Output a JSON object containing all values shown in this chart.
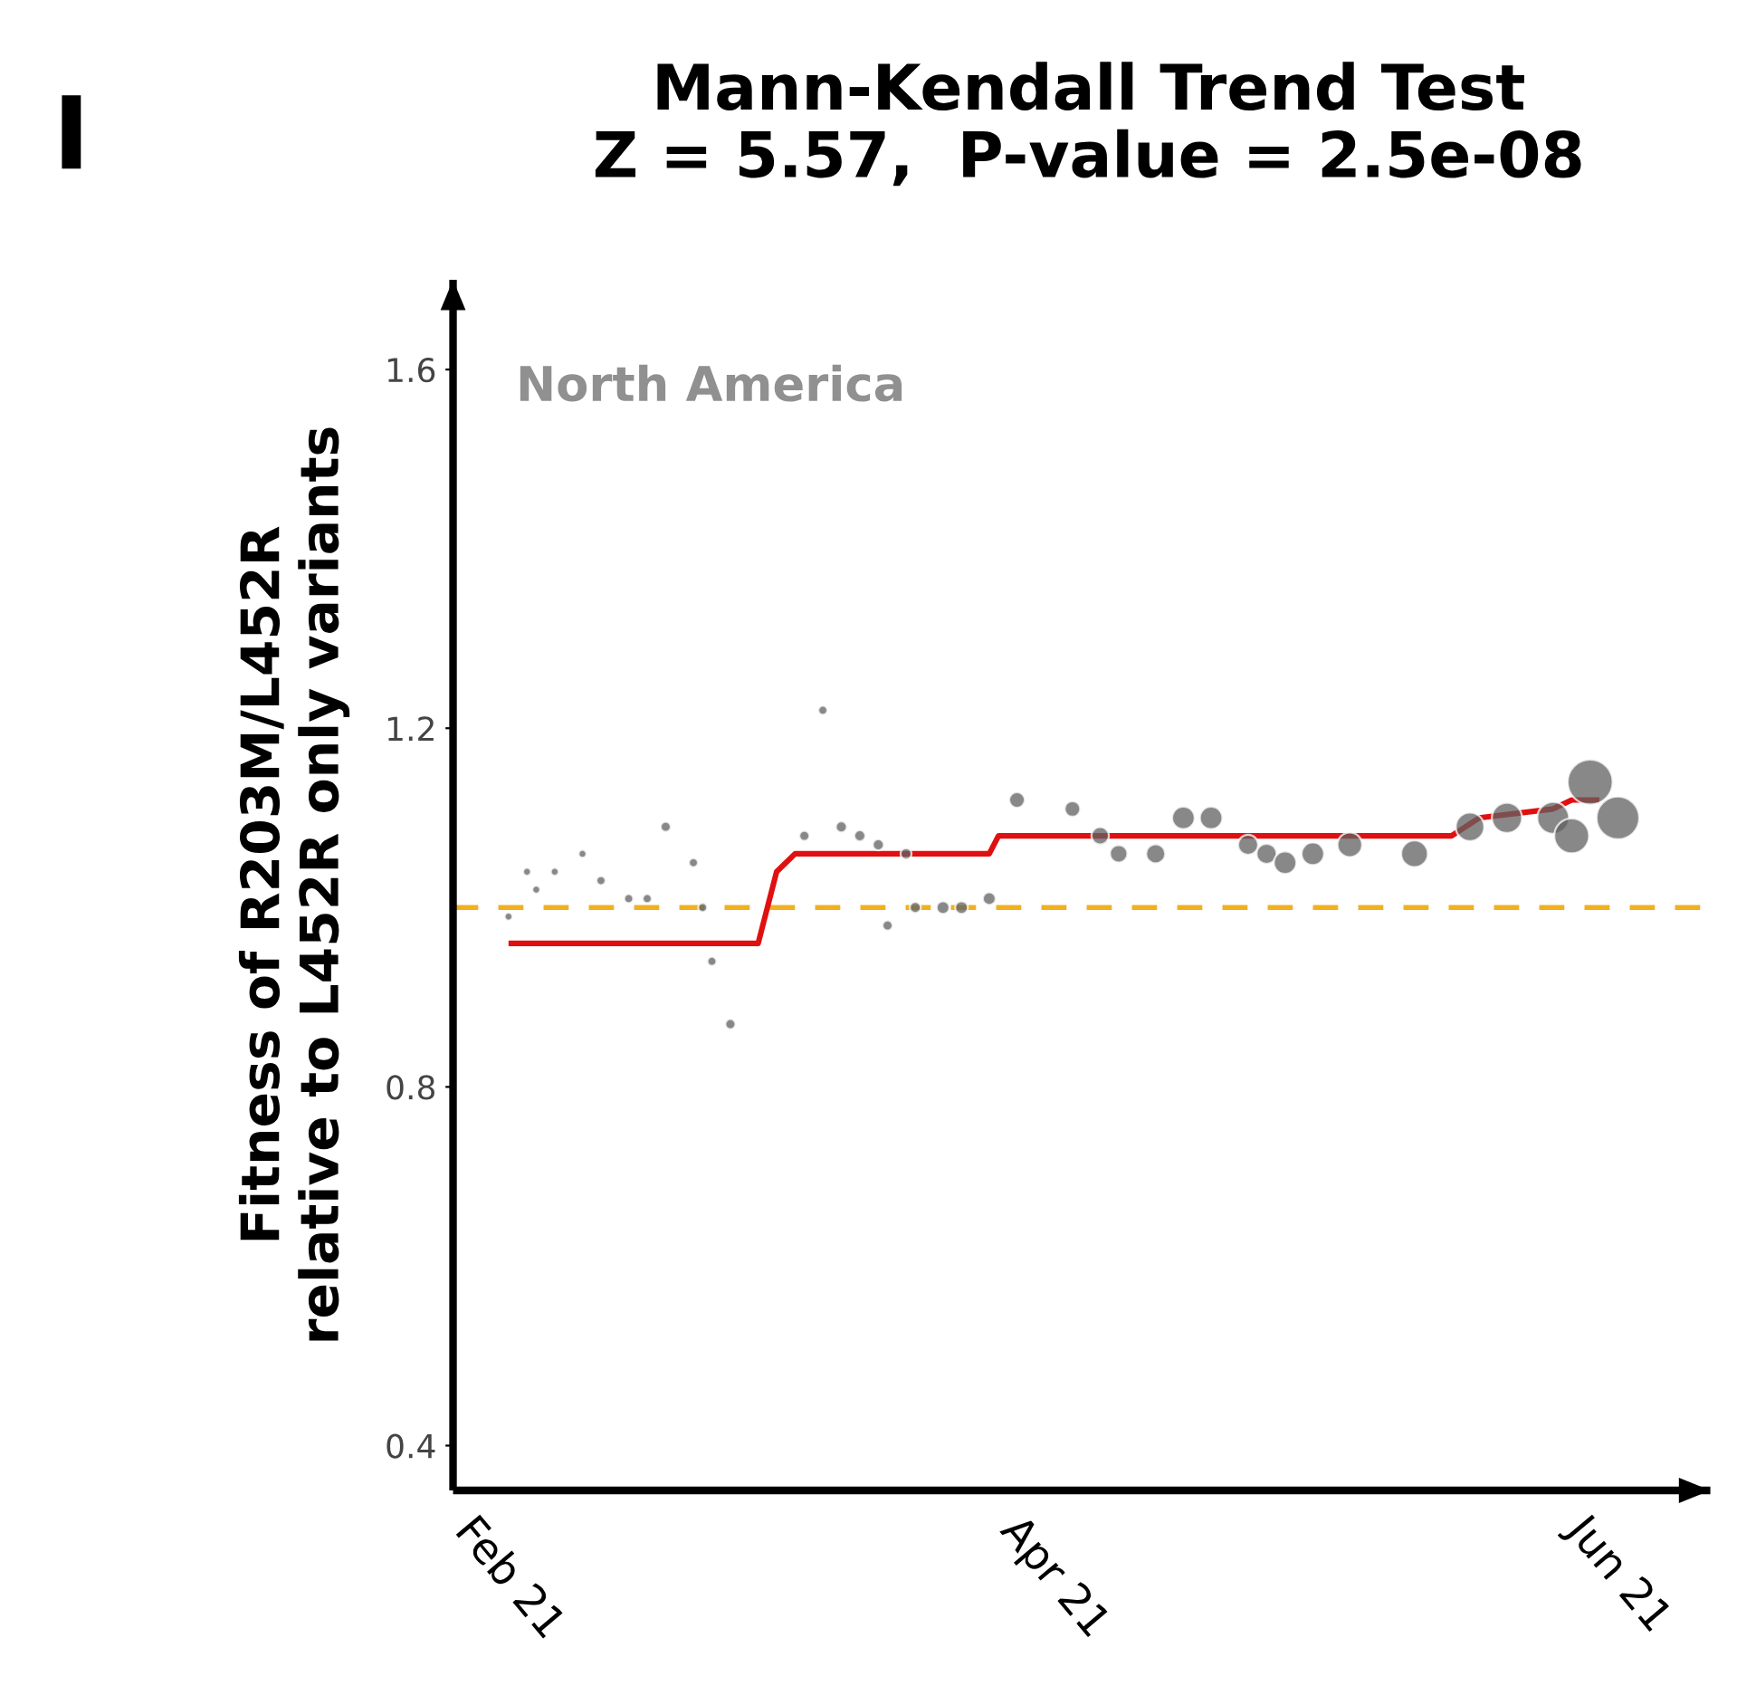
{
  "chart_data": {
    "type": "bubble",
    "title": "Mann-Kendall Trend Test",
    "subtitle": "Z = 5.57,  P-value = 2.5e-08",
    "ylabel": "Fitness of R203M/L452R\nrelative to L452R only variants",
    "annotations": [
      "I",
      "North America"
    ],
    "xlim": [
      "2021-01-26",
      "2021-06-11"
    ],
    "xticks": [
      {
        "value": "2021-02-01",
        "label": "Feb 21"
      },
      {
        "value": "2021-04-01",
        "label": "Apr 21"
      },
      {
        "value": "2021-06-01",
        "label": "Jun 21"
      }
    ],
    "ylim": [
      0.35,
      1.7
    ],
    "yticks": [
      0.4,
      0.8,
      1.2,
      1.6
    ],
    "grid": false,
    "legend": false,
    "ref_lines": [
      {
        "axis": "y",
        "value": 1.0,
        "color": "#f0b020",
        "line_style": "dashed"
      }
    ],
    "series": [
      {
        "color": "#606060",
        "x": [
          "2021-02-01",
          "2021-02-03",
          "2021-02-04",
          "2021-02-06",
          "2021-02-09",
          "2021-02-11",
          "2021-02-14",
          "2021-02-16",
          "2021-02-18",
          "2021-02-21",
          "2021-02-22",
          "2021-02-23",
          "2021-02-25",
          "2021-03-05",
          "2021-03-07",
          "2021-03-09",
          "2021-03-11",
          "2021-03-13",
          "2021-03-14",
          "2021-03-16",
          "2021-03-17",
          "2021-03-20",
          "2021-03-22",
          "2021-03-25",
          "2021-03-28",
          "2021-04-03",
          "2021-04-06",
          "2021-04-08",
          "2021-04-12",
          "2021-04-15",
          "2021-04-18",
          "2021-04-22",
          "2021-04-24",
          "2021-04-26",
          "2021-04-29",
          "2021-05-03",
          "2021-05-10",
          "2021-05-16",
          "2021-05-20",
          "2021-05-25",
          "2021-05-27",
          "2021-05-29",
          "2021-06-01"
        ],
        "values": [
          0.99,
          1.04,
          1.02,
          1.04,
          1.06,
          1.03,
          1.01,
          1.01,
          1.09,
          1.05,
          1.0,
          0.94,
          0.87,
          1.08,
          1.22,
          1.09,
          1.08,
          1.07,
          0.98,
          1.06,
          1.0,
          1.0,
          1.0,
          1.01,
          1.12,
          1.11,
          1.08,
          1.06,
          1.06,
          1.1,
          1.1,
          1.07,
          1.06,
          1.05,
          1.06,
          1.07,
          1.06,
          1.09,
          1.1,
          1.1,
          1.08,
          1.14,
          1.1
        ],
        "sizes": [
          0.03,
          0.03,
          0.03,
          0.03,
          0.03,
          0.04,
          0.04,
          0.04,
          0.05,
          0.04,
          0.04,
          0.04,
          0.05,
          0.05,
          0.04,
          0.06,
          0.06,
          0.06,
          0.05,
          0.06,
          0.06,
          0.08,
          0.08,
          0.08,
          0.12,
          0.12,
          0.15,
          0.15,
          0.18,
          0.25,
          0.25,
          0.2,
          0.2,
          0.25,
          0.25,
          0.3,
          0.35,
          0.4,
          0.45,
          0.5,
          0.6,
          1.0,
          0.9
        ]
      },
      {
        "type": "line",
        "color": "#e01010",
        "x": [
          "2021-02-01",
          "2021-02-28",
          "2021-03-02",
          "2021-03-04",
          "2021-03-25",
          "2021-03-26",
          "2021-05-14",
          "2021-05-17",
          "2021-05-25",
          "2021-05-27",
          "2021-05-30"
        ],
        "values": [
          0.96,
          0.96,
          1.04,
          1.06,
          1.06,
          1.08,
          1.08,
          1.1,
          1.11,
          1.12,
          1.12
        ]
      }
    ]
  }
}
